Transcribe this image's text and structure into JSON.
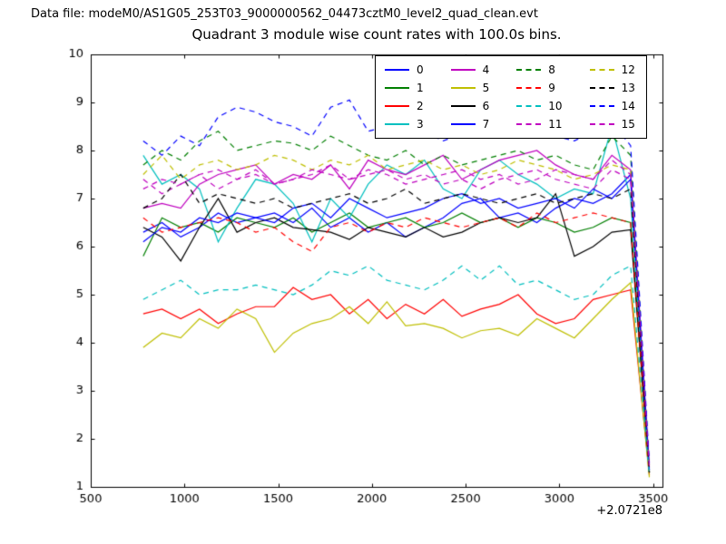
{
  "header": {
    "data_file_label": "Data file: modeM0/AS1G05_253T03_9000000562_04473cztM0_level2_quad_clean.evt"
  },
  "colors": {
    "background": "#ffffff",
    "axes": "#000000",
    "text": "#000000"
  },
  "chart_data": {
    "type": "line",
    "title": "Quadrant 3 module wise count rates with 100.0s bins.",
    "xlabel": "",
    "ylabel": "",
    "xlim": [
      500,
      3550
    ],
    "ylim": [
      1,
      10
    ],
    "xticks": [
      500,
      1000,
      1500,
      2000,
      2500,
      3000,
      3500
    ],
    "yticks": [
      1,
      2,
      3,
      4,
      5,
      6,
      7,
      8,
      9,
      10
    ],
    "x_offset_label": "+2.0721e8",
    "grid": false,
    "legend_position": "upper center-right",
    "x": [
      780,
      880,
      980,
      1080,
      1180,
      1280,
      1380,
      1480,
      1580,
      1680,
      1780,
      1880,
      1980,
      2080,
      2180,
      2280,
      2380,
      2480,
      2580,
      2680,
      2780,
      2880,
      2980,
      3080,
      3180,
      3280,
      3380,
      3480
    ],
    "series": [
      {
        "name": "0",
        "color": "#0000ff",
        "dash": false,
        "values": [
          6.3,
          6.5,
          6.2,
          6.4,
          6.7,
          6.5,
          6.6,
          6.7,
          6.5,
          6.8,
          6.4,
          6.6,
          6.3,
          6.5,
          6.2,
          6.4,
          6.6,
          6.9,
          7.0,
          6.6,
          6.7,
          6.5,
          6.8,
          7.0,
          6.9,
          7.1,
          7.5,
          1.35
        ]
      },
      {
        "name": "1",
        "color": "#007f00",
        "dash": false,
        "values": [
          5.8,
          6.6,
          6.4,
          6.5,
          6.3,
          6.6,
          6.5,
          6.4,
          6.6,
          6.3,
          6.5,
          6.7,
          6.4,
          6.5,
          6.6,
          6.4,
          6.5,
          6.7,
          6.5,
          6.6,
          6.4,
          6.6,
          6.5,
          6.3,
          6.4,
          6.6,
          6.5,
          1.3
        ]
      },
      {
        "name": "2",
        "color": "#ff0000",
        "dash": false,
        "values": [
          4.6,
          4.7,
          4.5,
          4.7,
          4.4,
          4.6,
          4.75,
          4.75,
          5.15,
          4.9,
          5.0,
          4.6,
          4.9,
          4.5,
          4.8,
          4.6,
          4.9,
          4.55,
          4.7,
          4.8,
          5.0,
          4.6,
          4.4,
          4.5,
          4.9,
          5.0,
          5.1,
          1.25
        ]
      },
      {
        "name": "3",
        "color": "#00bfbf",
        "dash": false,
        "values": [
          7.9,
          7.3,
          7.5,
          7.2,
          6.1,
          6.8,
          7.4,
          7.3,
          6.9,
          6.1,
          7.0,
          6.6,
          7.3,
          7.7,
          7.5,
          7.8,
          7.2,
          7.0,
          7.6,
          7.8,
          7.5,
          7.3,
          7.0,
          7.2,
          7.1,
          8.5,
          7.0,
          1.3
        ]
      },
      {
        "name": "4",
        "color": "#bf00bf",
        "dash": false,
        "values": [
          6.8,
          6.9,
          6.8,
          7.3,
          7.5,
          7.6,
          7.7,
          7.3,
          7.5,
          7.4,
          7.7,
          7.2,
          7.8,
          7.6,
          7.5,
          7.7,
          7.9,
          7.4,
          7.6,
          7.8,
          7.9,
          8.0,
          7.7,
          7.5,
          7.4,
          7.9,
          7.6,
          1.4
        ]
      },
      {
        "name": "5",
        "color": "#bfbf00",
        "dash": false,
        "values": [
          3.9,
          4.2,
          4.1,
          4.5,
          4.3,
          4.7,
          4.5,
          3.8,
          4.2,
          4.4,
          4.5,
          4.75,
          4.4,
          4.85,
          4.35,
          4.4,
          4.3,
          4.1,
          4.25,
          4.3,
          4.15,
          4.5,
          4.3,
          4.1,
          4.5,
          4.9,
          5.25,
          1.2
        ]
      },
      {
        "name": "6",
        "color": "#000000",
        "dash": false,
        "values": [
          6.4,
          6.2,
          5.7,
          6.4,
          7.0,
          6.3,
          6.5,
          6.6,
          6.4,
          6.35,
          6.3,
          6.15,
          6.4,
          6.3,
          6.2,
          6.4,
          6.2,
          6.3,
          6.5,
          6.6,
          6.5,
          6.6,
          7.1,
          5.8,
          6.0,
          6.3,
          6.35,
          1.3
        ]
      },
      {
        "name": "7",
        "color": "#0000ff",
        "dash": false,
        "values": [
          6.1,
          6.4,
          6.3,
          6.6,
          6.5,
          6.7,
          6.6,
          6.5,
          6.8,
          6.9,
          6.6,
          7.0,
          6.8,
          6.6,
          6.7,
          6.8,
          7.0,
          7.1,
          6.9,
          7.0,
          6.8,
          6.9,
          7.0,
          6.8,
          7.2,
          7.0,
          7.4,
          1.35
        ]
      },
      {
        "name": "8",
        "color": "#007f00",
        "dash": true,
        "values": [
          7.7,
          8.0,
          7.8,
          8.2,
          8.4,
          8.0,
          8.1,
          8.2,
          8.15,
          8.0,
          8.3,
          8.1,
          7.9,
          7.8,
          8.0,
          7.7,
          7.9,
          7.7,
          7.8,
          7.9,
          8.0,
          7.8,
          7.9,
          7.7,
          7.6,
          8.3,
          7.9,
          1.45
        ]
      },
      {
        "name": "9",
        "color": "#ff0000",
        "dash": true,
        "values": [
          6.6,
          6.3,
          6.4,
          6.5,
          6.6,
          6.5,
          6.3,
          6.4,
          6.1,
          5.9,
          6.4,
          6.5,
          6.3,
          6.5,
          6.4,
          6.6,
          6.5,
          6.4,
          6.5,
          6.6,
          6.4,
          6.7,
          6.5,
          6.6,
          6.7,
          6.6,
          6.5,
          1.3
        ]
      },
      {
        "name": "10",
        "color": "#00bfbf",
        "dash": true,
        "values": [
          4.9,
          5.1,
          5.3,
          5.0,
          5.1,
          5.1,
          5.2,
          5.1,
          5.0,
          5.2,
          5.5,
          5.4,
          5.6,
          5.3,
          5.2,
          5.1,
          5.3,
          5.6,
          5.3,
          5.6,
          5.2,
          5.3,
          5.1,
          4.9,
          5.0,
          5.4,
          5.6,
          1.25
        ]
      },
      {
        "name": "11",
        "color": "#bf00bf",
        "dash": true,
        "values": [
          7.4,
          7.1,
          7.3,
          7.5,
          7.2,
          7.4,
          7.6,
          7.3,
          7.4,
          7.5,
          7.7,
          7.4,
          7.5,
          7.6,
          7.4,
          7.5,
          7.3,
          7.4,
          7.2,
          7.4,
          7.5,
          7.6,
          7.4,
          7.3,
          7.2,
          7.6,
          7.4,
          1.4
        ]
      },
      {
        "name": "12",
        "color": "#bfbf00",
        "dash": true,
        "values": [
          7.5,
          7.9,
          7.4,
          7.7,
          7.8,
          7.6,
          7.7,
          7.9,
          7.8,
          7.6,
          7.8,
          7.7,
          7.9,
          7.6,
          7.7,
          7.8,
          7.6,
          7.7,
          7.5,
          7.6,
          7.8,
          7.7,
          7.6,
          7.4,
          7.5,
          7.7,
          7.6,
          1.35
        ]
      },
      {
        "name": "13",
        "color": "#000000",
        "dash": true,
        "values": [
          6.8,
          7.0,
          7.5,
          6.9,
          7.1,
          7.0,
          6.9,
          7.0,
          6.8,
          6.9,
          7.0,
          7.1,
          6.9,
          7.0,
          7.2,
          6.9,
          7.0,
          7.1,
          7.0,
          6.9,
          7.0,
          7.1,
          6.9,
          7.0,
          7.1,
          7.0,
          7.2,
          1.3
        ]
      },
      {
        "name": "14",
        "color": "#0000ff",
        "dash": true,
        "values": [
          8.2,
          7.9,
          8.3,
          8.1,
          8.7,
          8.9,
          8.8,
          8.6,
          8.5,
          8.3,
          8.9,
          9.05,
          8.4,
          8.5,
          8.3,
          8.4,
          8.2,
          8.35,
          8.5,
          8.6,
          8.4,
          8.5,
          8.3,
          8.2,
          8.4,
          8.6,
          8.1,
          1.5
        ]
      },
      {
        "name": "15",
        "color": "#bf00bf",
        "dash": true,
        "values": [
          7.2,
          7.4,
          7.3,
          7.5,
          7.6,
          7.4,
          7.5,
          7.3,
          7.4,
          7.6,
          7.5,
          7.4,
          7.6,
          7.5,
          7.3,
          7.4,
          7.5,
          7.6,
          7.4,
          7.5,
          7.3,
          7.4,
          7.6,
          7.5,
          7.4,
          7.8,
          7.5,
          1.4
        ]
      }
    ]
  }
}
